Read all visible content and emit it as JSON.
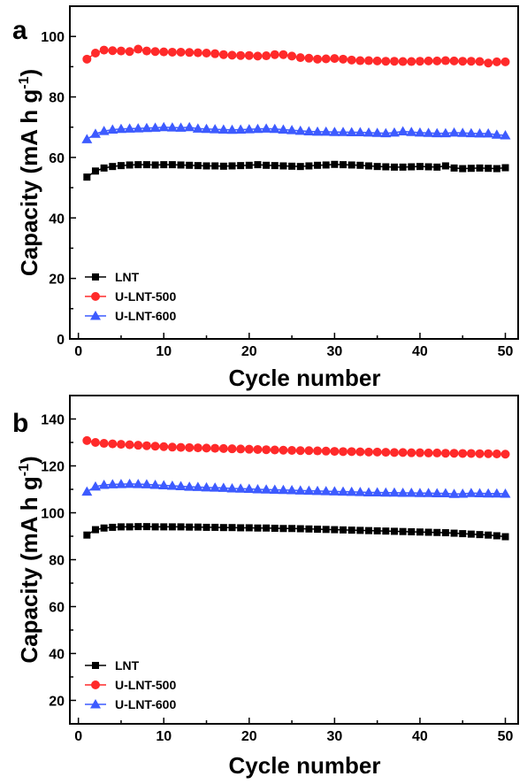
{
  "chart_data": [
    {
      "panel": "a",
      "type": "scatter",
      "xlabel": "Cycle number",
      "ylabel": "Capacity (mA h g-1)",
      "ylabel_parts": {
        "main": "Capacity (mA h g",
        "sup": "-1",
        "end": ")"
      },
      "xlim": [
        -1,
        51.5
      ],
      "ylim": [
        0,
        110
      ],
      "xticks": [
        0,
        10,
        20,
        30,
        40,
        50
      ],
      "yticks": [
        0,
        20,
        40,
        60,
        80,
        100
      ],
      "legend_position": "bottom-left",
      "grid": false,
      "series": [
        {
          "name": "LNT",
          "color": "#000000",
          "marker": "square",
          "values": [
            53.5,
            55.5,
            56.5,
            57.0,
            57.3,
            57.5,
            57.6,
            57.6,
            57.5,
            57.6,
            57.6,
            57.5,
            57.4,
            57.3,
            57.2,
            57.2,
            57.1,
            57.2,
            57.3,
            57.4,
            57.6,
            57.4,
            57.3,
            57.2,
            57.1,
            57.0,
            57.2,
            57.4,
            57.5,
            57.7,
            57.6,
            57.5,
            57.4,
            57.2,
            57.0,
            56.9,
            56.8,
            56.8,
            56.9,
            57.0,
            56.9,
            56.8,
            57.2,
            56.5,
            56.3,
            56.4,
            56.5,
            56.4,
            56.3,
            56.6
          ]
        },
        {
          "name": "U-LNT-500",
          "color": "#ff2a2a",
          "marker": "circle",
          "values": [
            92.5,
            94.5,
            95.5,
            95.3,
            95.2,
            95.0,
            95.8,
            95.2,
            95.0,
            94.9,
            94.8,
            94.8,
            94.7,
            94.6,
            94.5,
            94.3,
            94.0,
            93.8,
            93.7,
            93.7,
            93.5,
            93.6,
            94.0,
            94.0,
            93.5,
            93.0,
            92.8,
            92.5,
            92.6,
            92.7,
            92.5,
            92.2,
            92.0,
            92.0,
            91.9,
            91.8,
            91.8,
            91.7,
            91.7,
            91.8,
            91.9,
            91.9,
            92.0,
            91.9,
            91.8,
            91.8,
            91.7,
            91.2,
            91.6,
            91.6
          ]
        },
        {
          "name": "U-LNT-600",
          "color": "#3d5bff",
          "marker": "triangle",
          "values": [
            66.0,
            67.8,
            68.7,
            69.2,
            69.4,
            69.5,
            69.6,
            69.7,
            69.8,
            70.0,
            69.9,
            69.8,
            70.0,
            69.5,
            69.4,
            69.3,
            69.2,
            69.1,
            69.2,
            69.3,
            69.4,
            69.5,
            69.4,
            69.2,
            69.0,
            68.8,
            68.6,
            68.5,
            68.5,
            68.4,
            68.4,
            68.3,
            68.3,
            68.2,
            68.1,
            68.0,
            68.2,
            68.6,
            68.4,
            68.2,
            68.1,
            68.0,
            68.0,
            68.2,
            68.1,
            68.0,
            67.9,
            67.9,
            67.5,
            67.3
          ]
        }
      ]
    },
    {
      "panel": "b",
      "type": "scatter",
      "xlabel": "Cycle number",
      "ylabel": "Capacity (mA h g-1)",
      "ylabel_parts": {
        "main": "Capacity (mA h g",
        "sup": "-1",
        "end": ")"
      },
      "xlim": [
        -1,
        51.5
      ],
      "ylim": [
        10,
        150
      ],
      "xticks": [
        0,
        10,
        20,
        30,
        40,
        50
      ],
      "yticks": [
        20,
        40,
        60,
        80,
        100,
        120,
        140
      ],
      "legend_position": "bottom-left",
      "grid": false,
      "series": [
        {
          "name": "LNT",
          "color": "#000000",
          "marker": "square",
          "values": [
            90.5,
            92.8,
            93.5,
            93.8,
            94.0,
            94.0,
            94.1,
            94.1,
            94.0,
            94.0,
            94.0,
            94.0,
            93.9,
            93.9,
            93.8,
            93.8,
            93.7,
            93.7,
            93.6,
            93.6,
            93.5,
            93.5,
            93.4,
            93.3,
            93.3,
            93.2,
            93.1,
            93.0,
            92.9,
            92.8,
            92.7,
            92.6,
            92.5,
            92.4,
            92.3,
            92.2,
            92.1,
            92.0,
            91.9,
            91.8,
            91.7,
            91.6,
            91.5,
            91.3,
            91.1,
            90.9,
            90.7,
            90.5,
            90.2,
            89.8
          ]
        },
        {
          "name": "U-LNT-500",
          "color": "#ff2a2a",
          "marker": "circle",
          "values": [
            130.8,
            130.0,
            129.6,
            129.4,
            129.2,
            129.0,
            128.8,
            128.6,
            128.4,
            128.2,
            128.0,
            127.9,
            127.8,
            127.7,
            127.6,
            127.5,
            127.4,
            127.3,
            127.2,
            127.1,
            127.0,
            126.9,
            126.8,
            126.7,
            126.6,
            126.5,
            126.5,
            126.4,
            126.3,
            126.2,
            126.1,
            126.1,
            126.0,
            125.9,
            125.9,
            125.8,
            125.7,
            125.7,
            125.6,
            125.6,
            125.5,
            125.5,
            125.4,
            125.4,
            125.3,
            125.3,
            125.2,
            125.2,
            125.1,
            125.0
          ]
        },
        {
          "name": "U-LNT-600",
          "color": "#3d5bff",
          "marker": "triangle",
          "values": [
            109.0,
            111.2,
            111.9,
            112.1,
            112.2,
            112.3,
            112.2,
            112.1,
            111.9,
            111.7,
            111.5,
            111.3,
            111.1,
            111.0,
            110.8,
            110.7,
            110.6,
            110.4,
            110.3,
            110.2,
            110.0,
            109.9,
            109.8,
            109.7,
            109.6,
            109.5,
            109.4,
            109.3,
            109.2,
            109.1,
            109.0,
            108.9,
            108.8,
            108.7,
            108.7,
            108.6,
            108.6,
            108.5,
            108.5,
            108.4,
            108.4,
            108.3,
            108.3,
            108.0,
            108.1,
            108.4,
            108.3,
            108.2,
            108.2,
            108.1
          ]
        }
      ]
    }
  ]
}
